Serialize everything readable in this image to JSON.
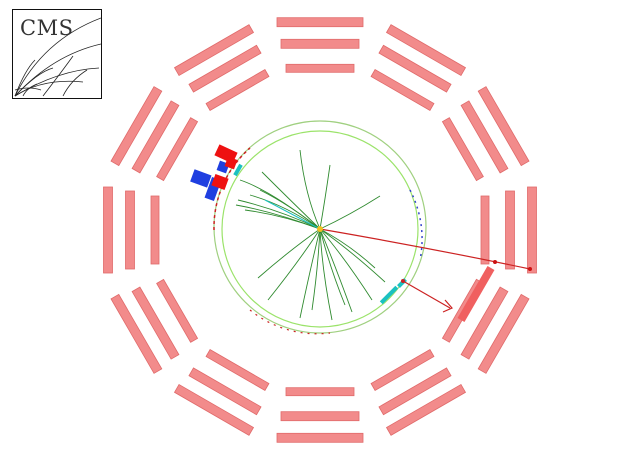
{
  "logo": {
    "text": "CMS"
  },
  "colors": {
    "muon_chamber": "#f28b8b",
    "muon_chamber_edge": "#e06a6a",
    "tracker_circle": "#9be36a",
    "track": "#2f8a2f",
    "hcal": "#1f3fe0",
    "ecal": "#ee1111",
    "preshower": "#1bc1c1",
    "muon_track": "#cc2222",
    "vertex": "#f0c020",
    "logo_text": "#333333"
  },
  "icons": [
    "cms-logo-icon",
    "muon-chamber-icon",
    "tracker-boundary-icon",
    "track-icon",
    "vertex-icon"
  ]
}
